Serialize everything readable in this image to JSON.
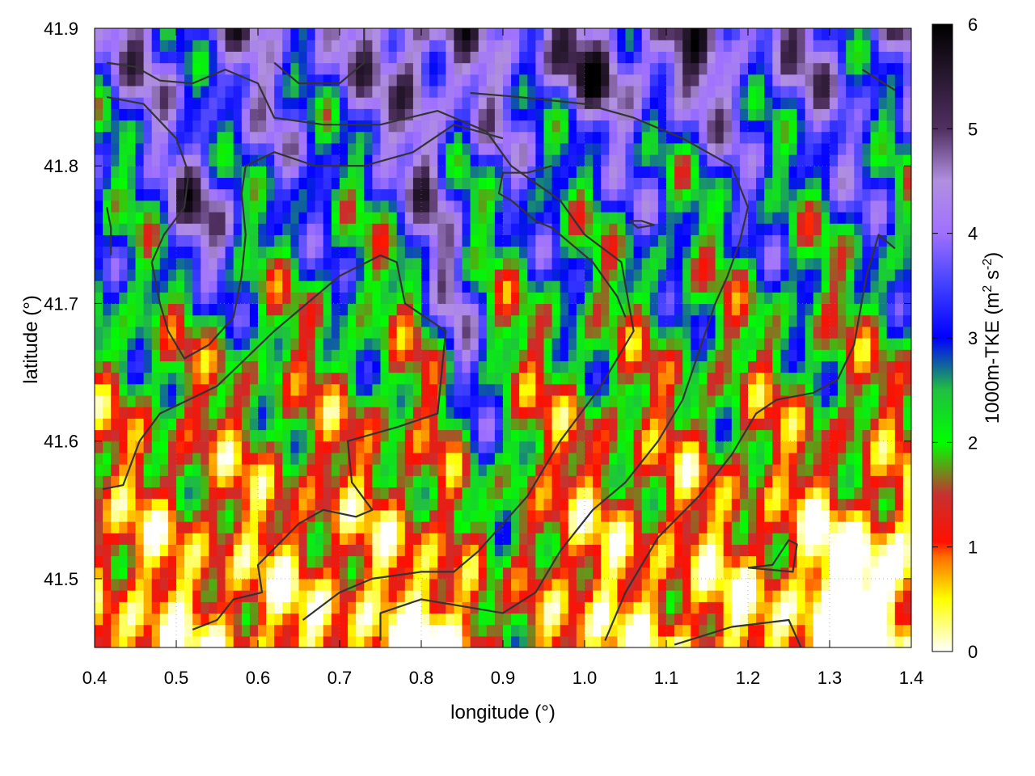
{
  "chart_data": {
    "type": "heatmap",
    "title": "",
    "xlabel": "longitude (°)",
    "ylabel": "latitude (°)",
    "xlim": [
      0.4,
      1.4
    ],
    "ylim": [
      41.45,
      41.9
    ],
    "x_ticks": [
      "0.4",
      "0.5",
      "0.6",
      "0.7",
      "0.8",
      "0.9",
      "1.0",
      "1.1",
      "1.2",
      "1.3",
      "1.4"
    ],
    "x_tick_values": [
      0.4,
      0.5,
      0.6,
      0.7,
      0.8,
      0.9,
      1.0,
      1.1,
      1.2,
      1.3,
      1.4
    ],
    "y_ticks": [
      "41.5",
      "41.6",
      "41.7",
      "41.8",
      "41.9"
    ],
    "y_tick_values": [
      41.5,
      41.6,
      41.7,
      41.8,
      41.9
    ],
    "colorbar": {
      "label_main": "1000m-TKE (m",
      "label_sup1": "2",
      "label_mid": " s",
      "label_sup2": "-2",
      "label_end": ")",
      "range": [
        0,
        6
      ],
      "ticks": [
        "0",
        "1",
        "2",
        "3",
        "4",
        "5",
        "6"
      ],
      "tick_values": [
        0,
        1,
        2,
        3,
        4,
        5,
        6
      ],
      "colors": [
        {
          "v": 0.0,
          "c": "#ffffff"
        },
        {
          "v": 0.5,
          "c": "#ffff00"
        },
        {
          "v": 0.9,
          "c": "#ff7000"
        },
        {
          "v": 1.05,
          "c": "#ff1000"
        },
        {
          "v": 1.5,
          "c": "#c83030"
        },
        {
          "v": 2.0,
          "c": "#00ff00"
        },
        {
          "v": 2.5,
          "c": "#20c040"
        },
        {
          "v": 3.0,
          "c": "#0000ff"
        },
        {
          "v": 3.5,
          "c": "#4040ff"
        },
        {
          "v": 4.0,
          "c": "#a070ff"
        },
        {
          "v": 4.5,
          "c": "#b090e0"
        },
        {
          "v": 5.0,
          "c": "#503060"
        },
        {
          "v": 6.0,
          "c": "#000000"
        }
      ]
    },
    "grid": "dotted",
    "contour_color": "#333333"
  }
}
